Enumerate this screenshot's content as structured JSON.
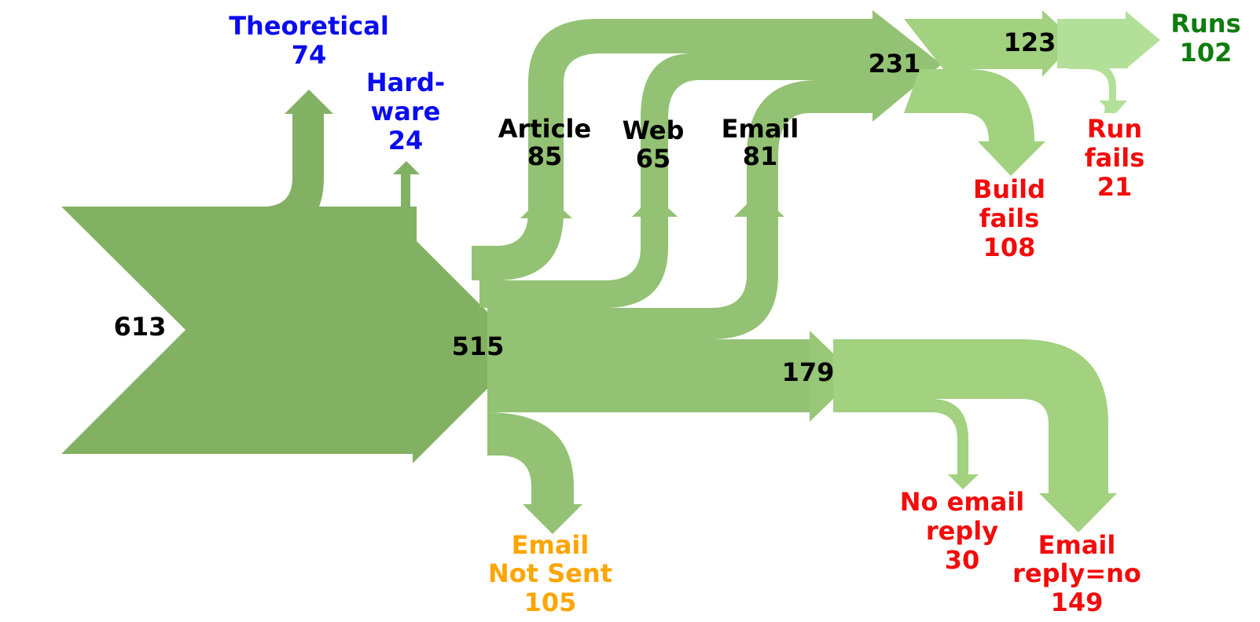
{
  "colors": {
    "flow1": "#83b163",
    "flow2": "#93c274",
    "flow3": "#a2d180",
    "flow4": "#b3e098",
    "label_black": "#000000",
    "label_blue": "#0b0bf0",
    "label_red": "#f20c0c",
    "label_orange": "#ffa500",
    "label_green": "#0e7c0e"
  },
  "nodes": {
    "total": {
      "value": "613"
    },
    "theoretical": {
      "line1": "Theoretical",
      "value": "74"
    },
    "hardware": {
      "line1": "Hard-",
      "line2": "ware",
      "value": "24"
    },
    "remaining": {
      "value": "515"
    },
    "article": {
      "line1": "Article",
      "value": "85"
    },
    "web": {
      "line1": "Web",
      "value": "65"
    },
    "email": {
      "line1": "Email",
      "value": "81"
    },
    "email_not_sent": {
      "line1": "Email",
      "line2": "Not Sent",
      "value": "105"
    },
    "obtained": {
      "value": "231"
    },
    "builds": {
      "value": "123"
    },
    "build_fails": {
      "line1": "Build",
      "line2": "fails",
      "value": "108"
    },
    "runs": {
      "line1": "Runs",
      "value": "102"
    },
    "run_fails": {
      "line1": "Run",
      "line2": "fails",
      "value": "21"
    },
    "email_sent": {
      "value": "179"
    },
    "no_email_reply": {
      "line1": "No email",
      "line2": "reply",
      "value": "30"
    },
    "email_reply_no": {
      "line1": "Email",
      "line2": "reply=no",
      "value": "149"
    }
  }
}
